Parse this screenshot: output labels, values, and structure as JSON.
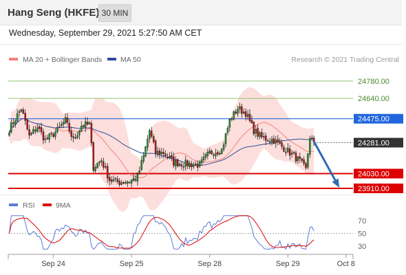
{
  "header": {
    "title": "Hang Seng (HKFE)",
    "timeframe": "30 MIN",
    "datetime": "Wednesday, September 29, 2021 5:27:50 AM CET"
  },
  "chart_data": [
    {
      "type": "candlestick",
      "legend": [
        {
          "label": "MA 20 + Bollinger Bands",
          "color": "#f4807a"
        },
        {
          "label": "MA 50",
          "color": "#2e4a9a"
        }
      ],
      "credit": "Research © 2021 Trading Central",
      "ylim": [
        23860,
        24880
      ],
      "x_count": 172,
      "levels": [
        {
          "value": 24780.0,
          "label": "24780.00",
          "color": "#8fc46a",
          "kind": "resistance-light"
        },
        {
          "value": 24640.0,
          "label": "24640.00",
          "color": "#8fc46a",
          "kind": "resistance-light"
        },
        {
          "value": 24475.0,
          "label": "24475.00",
          "color": "#2266dd",
          "kind": "pivot"
        },
        {
          "value": 24030.0,
          "label": "24030.00",
          "color": "#dd0000",
          "kind": "support"
        },
        {
          "value": 23910.0,
          "label": "23910.00",
          "color": "#dd0000",
          "kind": "support"
        }
      ],
      "last_price": {
        "value": 24281.0,
        "label": "24281.00",
        "color": "#333333"
      },
      "projection": {
        "from_x": 152,
        "from_y": 24290,
        "to_x": 164,
        "to_y": 23935,
        "color": "#2e6bb5"
      },
      "anchors": [
        {
          "x": 0,
          "y": 24390
        },
        {
          "x": 6,
          "y": 24560
        },
        {
          "x": 10,
          "y": 24330
        },
        {
          "x": 14,
          "y": 24410
        },
        {
          "x": 18,
          "y": 24300
        },
        {
          "x": 24,
          "y": 24380
        },
        {
          "x": 28,
          "y": 24460
        },
        {
          "x": 32,
          "y": 24300
        },
        {
          "x": 36,
          "y": 24420
        },
        {
          "x": 40,
          "y": 24430
        },
        {
          "x": 42,
          "y": 24080
        },
        {
          "x": 46,
          "y": 24140
        },
        {
          "x": 50,
          "y": 23980
        },
        {
          "x": 55,
          "y": 23960
        },
        {
          "x": 60,
          "y": 23970
        },
        {
          "x": 64,
          "y": 24000
        },
        {
          "x": 67,
          "y": 24170
        },
        {
          "x": 70,
          "y": 24380
        },
        {
          "x": 73,
          "y": 24200
        },
        {
          "x": 77,
          "y": 24200
        },
        {
          "x": 82,
          "y": 24120
        },
        {
          "x": 88,
          "y": 24110
        },
        {
          "x": 95,
          "y": 24100
        },
        {
          "x": 100,
          "y": 24200
        },
        {
          "x": 106,
          "y": 24220
        },
        {
          "x": 110,
          "y": 24460
        },
        {
          "x": 114,
          "y": 24560
        },
        {
          "x": 118,
          "y": 24520
        },
        {
          "x": 122,
          "y": 24380
        },
        {
          "x": 126,
          "y": 24320
        },
        {
          "x": 132,
          "y": 24300
        },
        {
          "x": 136,
          "y": 24250
        },
        {
          "x": 140,
          "y": 24200
        },
        {
          "x": 145,
          "y": 24130
        },
        {
          "x": 148,
          "y": 24060
        },
        {
          "x": 150,
          "y": 24330
        },
        {
          "x": 152,
          "y": 24281
        }
      ]
    },
    {
      "type": "line",
      "legend": [
        {
          "label": "RSI",
          "color": "#5b7bd6"
        },
        {
          "label": "9MA",
          "color": "#dd0000"
        }
      ],
      "ylim": [
        20,
        80
      ],
      "y_ticks": [
        "70",
        "50",
        "30"
      ],
      "reference_line": 50,
      "x_labels": [
        {
          "x": 22,
          "label": "Sep 24"
        },
        {
          "x": 61,
          "label": "Sep 25"
        },
        {
          "x": 100,
          "label": "Sep 28"
        },
        {
          "x": 139,
          "label": "Sep 29"
        },
        {
          "x": 168,
          "label": "Oct 8"
        }
      ]
    }
  ]
}
